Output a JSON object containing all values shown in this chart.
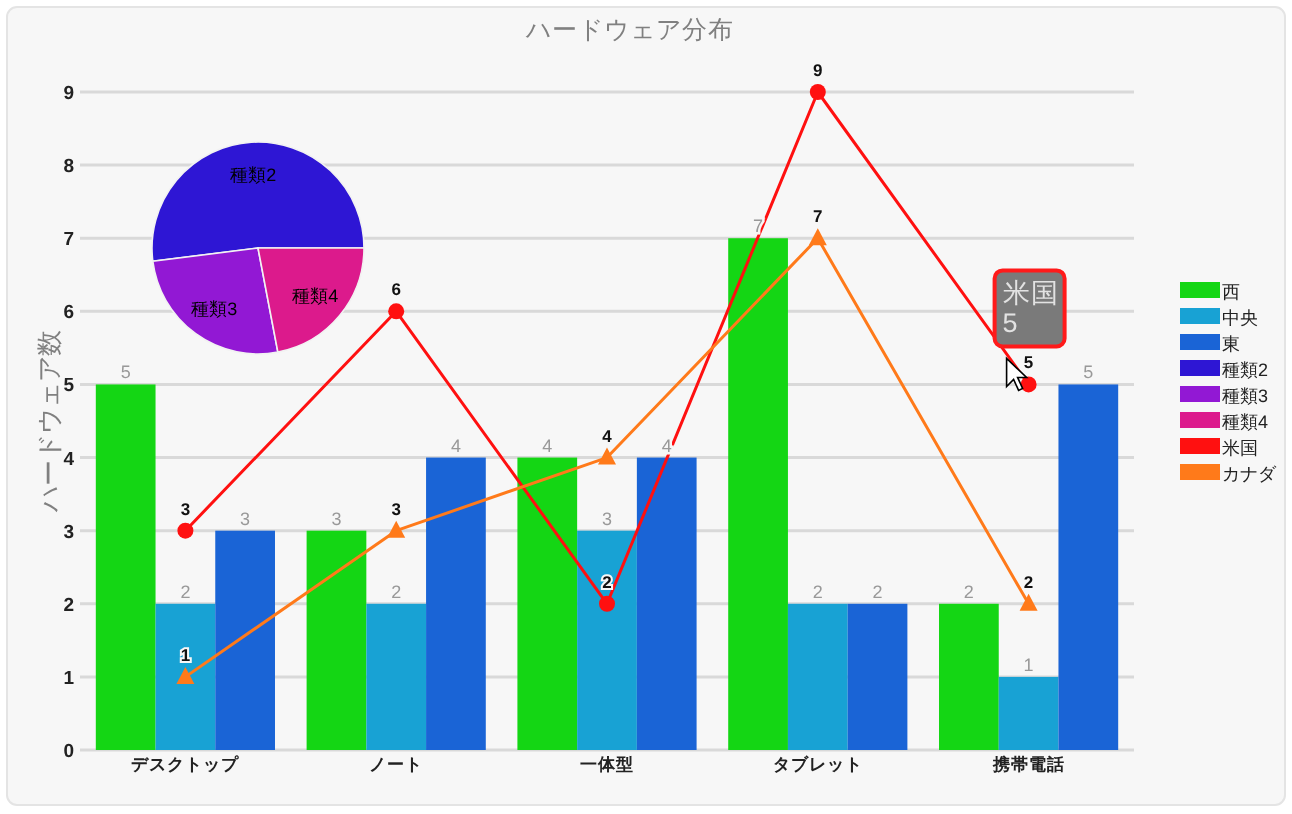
{
  "chart_data": [
    {
      "type": "bar",
      "title": "ハードウェア分布",
      "ylabel": "ハードウェア数",
      "categories": [
        "デスクトップ",
        "ノート",
        "一体型",
        "タブレット",
        "携帯電話"
      ],
      "series": [
        {
          "name": "西",
          "color": "#14d614",
          "values": [
            5,
            3,
            4,
            7,
            2
          ]
        },
        {
          "name": "中央",
          "color": "#18a2d4",
          "values": [
            2,
            2,
            3,
            2,
            1
          ]
        },
        {
          "name": "東",
          "color": "#1a64d6",
          "values": [
            3,
            4,
            4,
            2,
            5
          ]
        },
        {
          "name": "米国",
          "type": "line",
          "color": "#ff1010",
          "marker": "circle",
          "values": [
            3,
            6,
            2,
            9,
            5
          ]
        },
        {
          "name": "カナダ",
          "type": "line",
          "color": "#ff7a1a",
          "marker": "triangle",
          "values": [
            1,
            3,
            4,
            7,
            2
          ]
        }
      ],
      "ylim": [
        0,
        9
      ],
      "yticks": [
        0,
        1,
        2,
        3,
        4,
        5,
        6,
        7,
        8,
        9
      ],
      "grid": "y",
      "legend": "right",
      "data_labels": true,
      "annotations": [
        {
          "text": "米国 5",
          "x": "携帯電話",
          "y": 5
        }
      ]
    },
    {
      "type": "pie",
      "categories": [
        "種類2",
        "種類3",
        "種類4"
      ],
      "values": [
        52,
        26,
        22
      ],
      "colors": [
        "#2e16d4",
        "#9218d4",
        "#dc1a8c"
      ],
      "legend": "right"
    }
  ]
}
